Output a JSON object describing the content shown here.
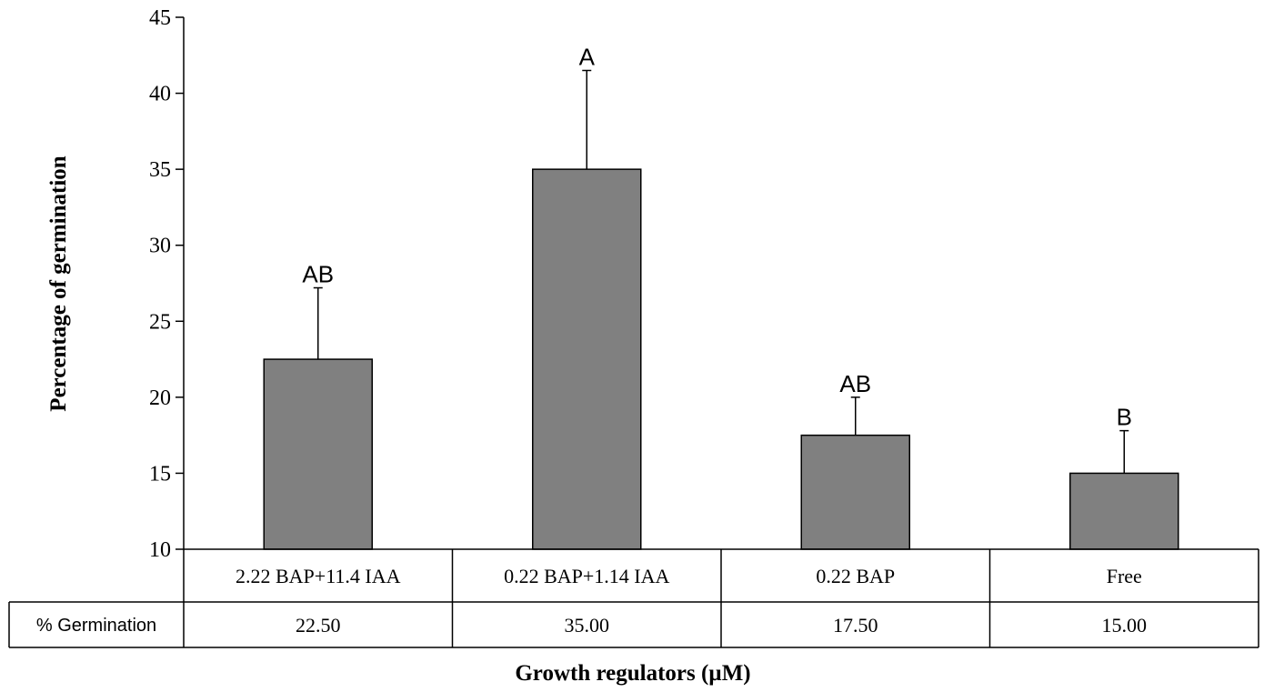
{
  "chart_data": {
    "type": "bar",
    "categories": [
      "2.22 BAP+11.4 IAA",
      "0.22 BAP+1.14 IAA",
      "0.22 BAP",
      "Free"
    ],
    "values": [
      22.5,
      35.0,
      17.5,
      15.0
    ],
    "error_upper": [
      27.2,
      41.5,
      20.0,
      17.8
    ],
    "significance": [
      "AB",
      "A",
      "AB",
      "B"
    ],
    "xlabel": "Growth regulators (µM)",
    "ylabel": "Percentage of germination",
    "ylim": [
      10,
      45
    ],
    "yticks": [
      "10",
      "15",
      "20",
      "25",
      "30",
      "35",
      "40",
      "45"
    ],
    "data_table": {
      "row_label": "% Germination",
      "cells": [
        "22.50",
        "35.00",
        "17.50",
        "15.00"
      ]
    },
    "bar_color": "#808080",
    "grid": false
  }
}
